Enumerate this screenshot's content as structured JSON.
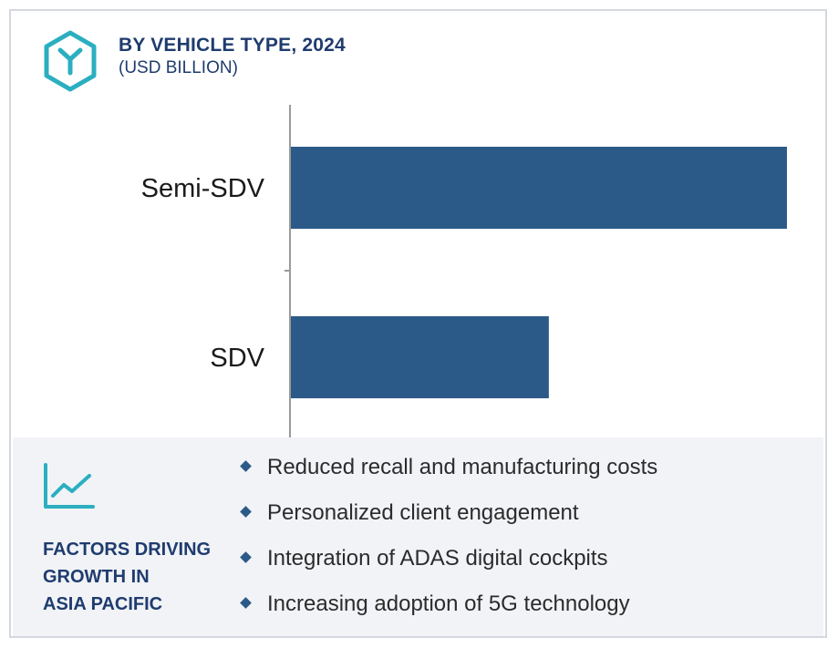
{
  "header": {
    "title": "BY VEHICLE TYPE, 2024",
    "subtitle": "(USD BILLION)",
    "icon": "hexagon-network-icon"
  },
  "colors": {
    "bar": "#2c5a88",
    "accent": "#2bafc0",
    "heading": "#1f3c6e",
    "panel_bg": "#f1f3f7"
  },
  "chart_data": {
    "type": "bar",
    "orientation": "horizontal",
    "categories": [
      "Semi-SDV",
      "SDV"
    ],
    "values": [
      100,
      52
    ],
    "xlim": [
      0,
      100
    ],
    "title": "BY VEHICLE TYPE, 2024",
    "xlabel": "",
    "ylabel": "",
    "grid": false,
    "value_labels_shown": false
  },
  "factors": {
    "icon": "trend-chart-icon",
    "heading_lines": [
      "FACTORS DRIVING",
      "GROWTH IN",
      "ASIA PACIFIC"
    ],
    "items": [
      "Reduced recall and manufacturing costs",
      "Personalized client engagement",
      "Integration of ADAS digital cockpits",
      "Increasing adoption of 5G technology"
    ]
  }
}
